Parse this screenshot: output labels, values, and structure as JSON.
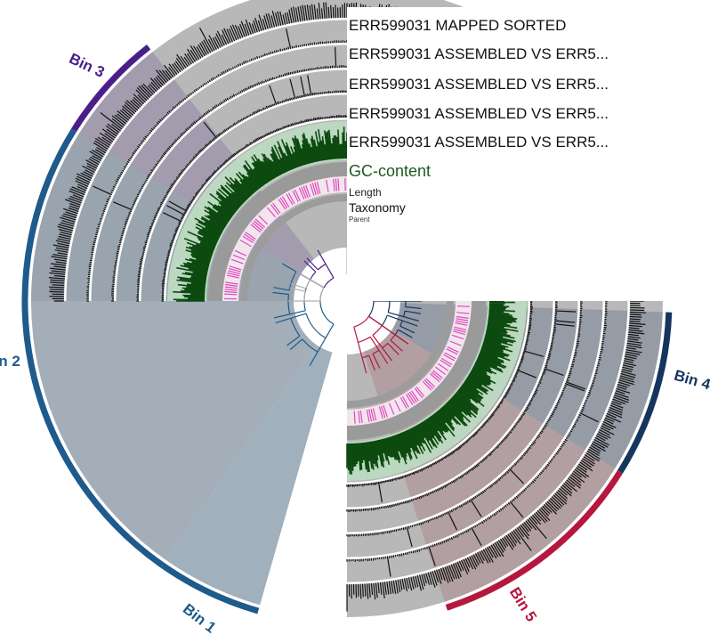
{
  "layers": [
    {
      "label": "ERR599031 MAPPED SORTED"
    },
    {
      "label": "ERR599031 ASSEMBLED VS ERR5..."
    },
    {
      "label": "ERR599031 ASSEMBLED VS ERR5..."
    },
    {
      "label": "ERR599031 ASSEMBLED VS ERR5..."
    },
    {
      "label": "ERR599031 ASSEMBLED VS ERR5..."
    }
  ],
  "gc_label": "GC-content",
  "length_label": "Length",
  "taxonomy_label": "Taxonomy",
  "parent_label": "Parent",
  "bins": [
    {
      "name": "Bin 1",
      "color": "#1d5b8a"
    },
    {
      "name": "Bin 2",
      "color": "#1f5a8c"
    },
    {
      "name": "Bin 3",
      "color": "#4a1f8a"
    },
    {
      "name": "Bin 4",
      "color": "#16355e"
    },
    {
      "name": "Bin 5",
      "color": "#b5173f"
    }
  ],
  "colors": {
    "track_bg": "#b8b8b8",
    "coverage": "#111111",
    "gc": "#0d4a10",
    "gc_bg": "#bcd8c0",
    "taxonomy": "#e020b0"
  }
}
